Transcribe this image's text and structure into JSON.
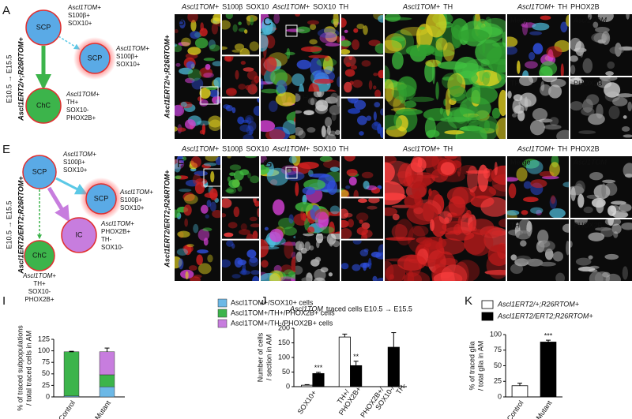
{
  "schematic_A": {
    "letter": "A",
    "timeline": "E10.5 → E15.5",
    "genotype": "Ascl1ERT2/+;R26RTOM+",
    "nodes": [
      {
        "label": "SCP",
        "markers": [
          "Ascl1TOM+",
          "S100β+",
          "SOX10+"
        ]
      },
      {
        "label": "SCP",
        "markers": [
          "Ascl1TOM+",
          "S100β+",
          "SOX10+"
        ]
      },
      {
        "label": "ChC",
        "markers": [
          "Ascl1TOM+",
          "TH+",
          "SOX10-",
          "PHOX2B+"
        ]
      }
    ]
  },
  "schematic_E": {
    "letter": "E",
    "timeline": "E10.5 → E15.5",
    "genotype": "Ascl1ERT2/ERT2;R26RTOM+",
    "nodes": [
      {
        "label": "SCP",
        "markers": [
          "Ascl1TOM+",
          "S100β+",
          "SOX10+"
        ]
      },
      {
        "label": "SCP",
        "markers": [
          "Ascl1TOM+",
          "S100β+",
          "SOX10+"
        ]
      },
      {
        "label": "IC",
        "markers": [
          "Ascl1TOM+",
          "PHOX2B+",
          "TH-",
          "SOX10-"
        ]
      },
      {
        "label": "ChC",
        "markers": [
          "Ascl1TOM+",
          "TH+",
          "SOX10-",
          "PHOX2B+"
        ]
      }
    ]
  },
  "micrographs": {
    "rows": [
      {
        "genotype": "Ascl1ERT2/+;R26RTOM+",
        "letters": [
          "B",
          "C"
        ],
        "inset_label": "TH",
        "grid_labels": [
          "Merge",
          "Ascl1TOM",
          "TH",
          "PHOX2B"
        ],
        "headers": [
          [
            {
              "text": "Ascl1TOM+",
              "color": "#e02020"
            },
            {
              "text": "S100β",
              "color": "#2ca02c"
            },
            {
              "text": "SOX10",
              "color": "#2a4fd0"
            }
          ],
          [
            {
              "text": "Ascl1TOM+",
              "color": "#e02020"
            },
            {
              "text": "SOX10",
              "color": "#2ca02c"
            },
            {
              "text": "TH",
              "color": "#2a4fd0"
            }
          ],
          [
            {
              "text": "Ascl1TOM+",
              "color": "#e02020"
            },
            {
              "text": "TH",
              "color": "#2ca02c"
            }
          ],
          [
            {
              "text": "Ascl1TOM+",
              "color": "#e02020"
            },
            {
              "text": "TH",
              "color": "#2ca02c"
            },
            {
              "text": "PHOX2B",
              "color": "#2a4fd0"
            }
          ]
        ]
      },
      {
        "genotype": "Ascl1ERT2/ERT2;R26RTOM+",
        "letters": [
          "F",
          "G"
        ],
        "inset_label": "TH",
        "grid_labels": [
          "Merge",
          "Ascl1TOM",
          "TH",
          "PHOX2B"
        ],
        "headers": [
          [
            {
              "text": "Ascl1TOM+",
              "color": "#e02020"
            },
            {
              "text": "S100β",
              "color": "#2ca02c"
            },
            {
              "text": "SOX10",
              "color": "#2a4fd0"
            }
          ],
          [
            {
              "text": "Ascl1TOM+",
              "color": "#e02020"
            },
            {
              "text": "SOX10",
              "color": "#2ca02c"
            },
            {
              "text": "TH",
              "color": "#2a4fd0"
            }
          ],
          [
            {
              "text": "Ascl1TOM+",
              "color": "#e02020"
            },
            {
              "text": "TH",
              "color": "#2ca02c"
            }
          ],
          [
            {
              "text": "Ascl1TOM+",
              "color": "#e02020"
            },
            {
              "text": "TH",
              "color": "#2ca02c"
            },
            {
              "text": "PHOX2B",
              "color": "#2a4fd0"
            }
          ]
        ]
      }
    ]
  },
  "chart_data": [
    {
      "type": "stacked_bar",
      "panel": "I",
      "ylabel": [
        "% of traced subpopulations",
        "/ total traced cells in AM"
      ],
      "categories": [
        "Control",
        "Mutant"
      ],
      "series": [
        {
          "name": "Ascl1TOM+/SOX10+ cells",
          "color": "#6cb8e6",
          "values": [
            2,
            22
          ],
          "errors": [
            1,
            3
          ]
        },
        {
          "name": "Ascl1TOM+/TH+/PHOX2B+ cells",
          "color": "#3cb44b",
          "values": [
            96,
            26
          ],
          "errors": [
            1,
            3
          ]
        },
        {
          "name": "Ascl1TOM+/TH-/PHOX2B+ cells",
          "color": "#c77dde",
          "values": [
            0,
            50
          ],
          "errors": [
            0,
            8
          ]
        }
      ],
      "ylim": [
        0,
        125
      ],
      "yticks": [
        0,
        25,
        50,
        75,
        100,
        125
      ]
    },
    {
      "type": "bar",
      "panel": "J",
      "title": [
        {
          "text": "Ascl1TOM",
          "color": "#e02020"
        },
        {
          "text": "traced cells E10.5 → E15.5",
          "color": "#111111"
        }
      ],
      "ylabel": [
        "Number of cells",
        "/ section in AM"
      ],
      "categories": [
        "SOX10+",
        "TH+/ PHOX2B+",
        "PHOX2B+/ SOX10-/ TH-"
      ],
      "series": [
        {
          "name": "Ascl1ERT2/+;R26RTOM+",
          "color": "#ffffff",
          "values": [
            5,
            170,
            null
          ],
          "errors": [
            2,
            10,
            null
          ]
        },
        {
          "name": "Ascl1ERT2/ERT2;R26RTOM+",
          "color": "#000000",
          "values": [
            45,
            72,
            135
          ],
          "errors": [
            4,
            15,
            50
          ],
          "annotations": [
            "***",
            "**",
            null
          ]
        }
      ],
      "ylim": [
        0,
        200
      ],
      "yticks": [
        0,
        50,
        100,
        150,
        200
      ]
    },
    {
      "type": "bar",
      "panel": "K",
      "ylabel": [
        "% of traced glia",
        "/ total glia in AM"
      ],
      "categories": [
        "Control",
        "Mutant"
      ],
      "colors": [
        "#ffffff",
        "#000000"
      ],
      "values": [
        18,
        88
      ],
      "errors": [
        4,
        3
      ],
      "annotations": [
        null,
        "***"
      ],
      "ylim": [
        0,
        100
      ],
      "yticks": [
        0,
        25,
        50,
        75,
        100
      ]
    }
  ]
}
